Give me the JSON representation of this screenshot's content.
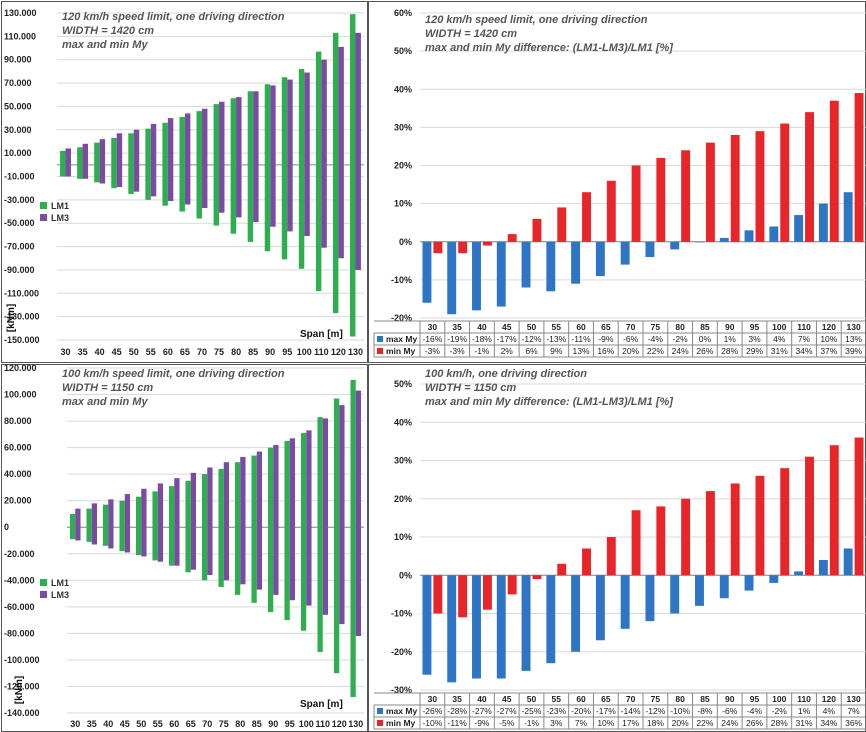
{
  "colors": {
    "LM1": "#2EAF4F",
    "LM3": "#7B4BA3",
    "max_My": "#2E75C6",
    "min_My": "#E8262A"
  },
  "chart_data": [
    {
      "type": "bar",
      "title": [
        "120 km/h speed limit, one driving direction",
        "WIDTH = 1420 cm",
        "max and min My"
      ],
      "xlabel": "Span [m]",
      "ylabel": "[kNm]",
      "ylim": [
        -150000,
        130000
      ],
      "yticks": [
        130000,
        110000,
        90000,
        70000,
        50000,
        30000,
        10000,
        -10000,
        -30000,
        -50000,
        -70000,
        -90000,
        -110000,
        -130000,
        -150000
      ],
      "ytick_labels": [
        "130.000",
        "110.000",
        "90.000",
        "70.000",
        "50.000",
        "30.000",
        "10.000",
        "-10.000",
        "-30.000",
        "-50.000",
        "-70.000",
        "-90.000",
        "-110.000",
        "-130.000",
        "-150.000"
      ],
      "categories": [
        "30",
        "35",
        "40",
        "45",
        "50",
        "55",
        "60",
        "65",
        "70",
        "75",
        "80",
        "85",
        "90",
        "95",
        "100",
        "110",
        "120",
        "130"
      ],
      "legend": [
        "LM1",
        "LM3"
      ],
      "legend_position": "middle-left",
      "series": [
        {
          "name": "LM1",
          "kind": "max",
          "values": [
            12000,
            15000,
            19000,
            23000,
            27000,
            31000,
            36000,
            41000,
            46000,
            52000,
            57000,
            63000,
            69000,
            75000,
            82000,
            97000,
            113000,
            129000
          ]
        },
        {
          "name": "LM3",
          "kind": "max",
          "values": [
            14000,
            18000,
            22000,
            27000,
            30000,
            35000,
            40000,
            44000,
            48000,
            54000,
            58000,
            63000,
            68000,
            73000,
            79000,
            90000,
            101000,
            113000
          ]
        },
        {
          "name": "LM1",
          "kind": "min",
          "values": [
            -10000,
            -12000,
            -15000,
            -20000,
            -25000,
            -30000,
            -35000,
            -40000,
            -46000,
            -52000,
            -59000,
            -66000,
            -74000,
            -81000,
            -89000,
            -108000,
            -127000,
            -147000
          ]
        },
        {
          "name": "LM3",
          "kind": "min",
          "values": [
            -10000,
            -12000,
            -16000,
            -19000,
            -23000,
            -27000,
            -31000,
            -34000,
            -37000,
            -41000,
            -45000,
            -49000,
            -53000,
            -57000,
            -61000,
            -71000,
            -80000,
            -90000
          ]
        }
      ]
    },
    {
      "type": "bar",
      "title": [
        "120 km/h speed limit, one driving direction",
        "WIDTH = 1420 cm",
        "max and min My difference:  (LM1-LM3)/LM1 [%]"
      ],
      "ylim": [
        -20,
        60
      ],
      "yticks": [
        60,
        50,
        40,
        30,
        20,
        10,
        0,
        -10,
        -20
      ],
      "ytick_labels": [
        "60%",
        "50%",
        "40%",
        "30%",
        "20%",
        "10%",
        "0%",
        "-10%",
        "-20%"
      ],
      "categories": [
        "30",
        "35",
        "40",
        "45",
        "50",
        "55",
        "60",
        "65",
        "70",
        "75",
        "80",
        "85",
        "90",
        "95",
        "100",
        "110",
        "120",
        "130"
      ],
      "series": [
        {
          "name": "max My",
          "values": [
            -16,
            -19,
            -18,
            -17,
            -12,
            -13,
            -11,
            -9,
            -6,
            -4,
            -2,
            0,
            1,
            3,
            4,
            7,
            10,
            13
          ]
        },
        {
          "name": "min My",
          "values": [
            -3,
            -3,
            -1,
            2,
            6,
            9,
            13,
            16,
            20,
            22,
            24,
            26,
            28,
            29,
            31,
            34,
            37,
            39
          ]
        }
      ],
      "table": {
        "header": [
          "30",
          "35",
          "40",
          "45",
          "50",
          "55",
          "60",
          "65",
          "70",
          "75",
          "80",
          "85",
          "90",
          "95",
          "100",
          "110",
          "120",
          "130"
        ],
        "rows": [
          {
            "label": "max My",
            "cells": [
              "-16%",
              "-19%",
              "-18%",
              "-17%",
              "-12%",
              "-13%",
              "-11%",
              "-9%",
              "-6%",
              "-4%",
              "-2%",
              "0%",
              "1%",
              "3%",
              "4%",
              "7%",
              "10%",
              "13%"
            ]
          },
          {
            "label": "min My",
            "cells": [
              "-3%",
              "-3%",
              "-1%",
              "2%",
              "6%",
              "9%",
              "13%",
              "16%",
              "20%",
              "22%",
              "24%",
              "26%",
              "28%",
              "29%",
              "31%",
              "34%",
              "37%",
              "39%"
            ]
          }
        ]
      }
    },
    {
      "type": "bar",
      "title": [
        "100 km/h speed limit, one driving direction",
        "WIDTH = 1150 cm",
        "max and min My"
      ],
      "xlabel": "Span [m]",
      "ylabel": "[kNm]",
      "ylim": [
        -140000,
        120000
      ],
      "yticks": [
        120000,
        100000,
        80000,
        60000,
        40000,
        20000,
        0,
        -20000,
        -40000,
        -60000,
        -80000,
        -100000,
        -120000,
        -140000
      ],
      "ytick_labels": [
        "120.000",
        "100.000",
        "80.000",
        "60.000",
        "40.000",
        "20.000",
        "0",
        "-20.000",
        "-40.000",
        "-60.000",
        "-80.000",
        "-100.000",
        "-120.000",
        "-140.000"
      ],
      "categories": [
        "30",
        "35",
        "40",
        "45",
        "50",
        "55",
        "60",
        "65",
        "70",
        "75",
        "80",
        "85",
        "90",
        "95",
        "100",
        "110",
        "120",
        "130"
      ],
      "legend": [
        "LM1",
        "LM3"
      ],
      "legend_position": "bottom-left",
      "series": [
        {
          "name": "LM1",
          "kind": "max",
          "values": [
            10000,
            14000,
            17000,
            20000,
            23000,
            27000,
            31000,
            35000,
            40000,
            44000,
            49000,
            54000,
            60000,
            65000,
            71000,
            83000,
            97000,
            111000
          ]
        },
        {
          "name": "LM3",
          "kind": "max",
          "values": [
            14000,
            18000,
            21000,
            25000,
            29000,
            33000,
            37000,
            41000,
            45000,
            49000,
            53000,
            57000,
            62000,
            67000,
            73000,
            82000,
            92000,
            103000
          ]
        },
        {
          "name": "LM1",
          "kind": "min",
          "values": [
            -9000,
            -11000,
            -14000,
            -18000,
            -21000,
            -25000,
            -29000,
            -34000,
            -40000,
            -45000,
            -51000,
            -57000,
            -64000,
            -70000,
            -78000,
            -94000,
            -110000,
            -128000
          ]
        },
        {
          "name": "LM3",
          "kind": "min",
          "values": [
            -10000,
            -13000,
            -16000,
            -19000,
            -22000,
            -26000,
            -29000,
            -32000,
            -36000,
            -40000,
            -43000,
            -47000,
            -51000,
            -55000,
            -59000,
            -66000,
            -73000,
            -82000
          ]
        }
      ]
    },
    {
      "type": "bar",
      "title": [
        "100 km/h, one driving direction",
        "WIDTH = 1150 cm",
        "max and min My difference:  (LM1-LM3)/LM1 [%]"
      ],
      "ylim": [
        -30,
        50
      ],
      "yticks": [
        50,
        40,
        30,
        20,
        10,
        0,
        -10,
        -20,
        -30
      ],
      "ytick_labels": [
        "50%",
        "40%",
        "30%",
        "20%",
        "10%",
        "0%",
        "-10%",
        "-20%",
        "-30%"
      ],
      "categories": [
        "30",
        "35",
        "40",
        "45",
        "50",
        "55",
        "60",
        "65",
        "70",
        "75",
        "80",
        "85",
        "90",
        "95",
        "100",
        "110",
        "120",
        "130"
      ],
      "series": [
        {
          "name": "max My",
          "values": [
            -26,
            -28,
            -27,
            -27,
            -25,
            -23,
            -20,
            -17,
            -14,
            -12,
            -10,
            -8,
            -6,
            -4,
            -2,
            1,
            4,
            7
          ]
        },
        {
          "name": "min My",
          "values": [
            -10,
            -11,
            -9,
            -5,
            -1,
            3,
            7,
            10,
            17,
            18,
            20,
            22,
            24,
            26,
            28,
            31,
            34,
            36
          ]
        }
      ],
      "table": {
        "header": [
          "30",
          "35",
          "40",
          "45",
          "50",
          "55",
          "60",
          "65",
          "70",
          "75",
          "80",
          "85",
          "90",
          "95",
          "100",
          "110",
          "120",
          "130"
        ],
        "rows": [
          {
            "label": "max My",
            "cells": [
              "-26%",
              "-28%",
              "-27%",
              "-27%",
              "-25%",
              "-23%",
              "-20%",
              "-17%",
              "-14%",
              "-12%",
              "-10%",
              "-8%",
              "-6%",
              "-4%",
              "-2%",
              "1%",
              "4%",
              "7%"
            ]
          },
          {
            "label": "min My",
            "cells": [
              "-10%",
              "-11%",
              "-9%",
              "-5%",
              "-1%",
              "3%",
              "7%",
              "10%",
              "17%",
              "18%",
              "20%",
              "22%",
              "24%",
              "26%",
              "28%",
              "31%",
              "34%",
              "36%"
            ]
          }
        ]
      }
    }
  ]
}
